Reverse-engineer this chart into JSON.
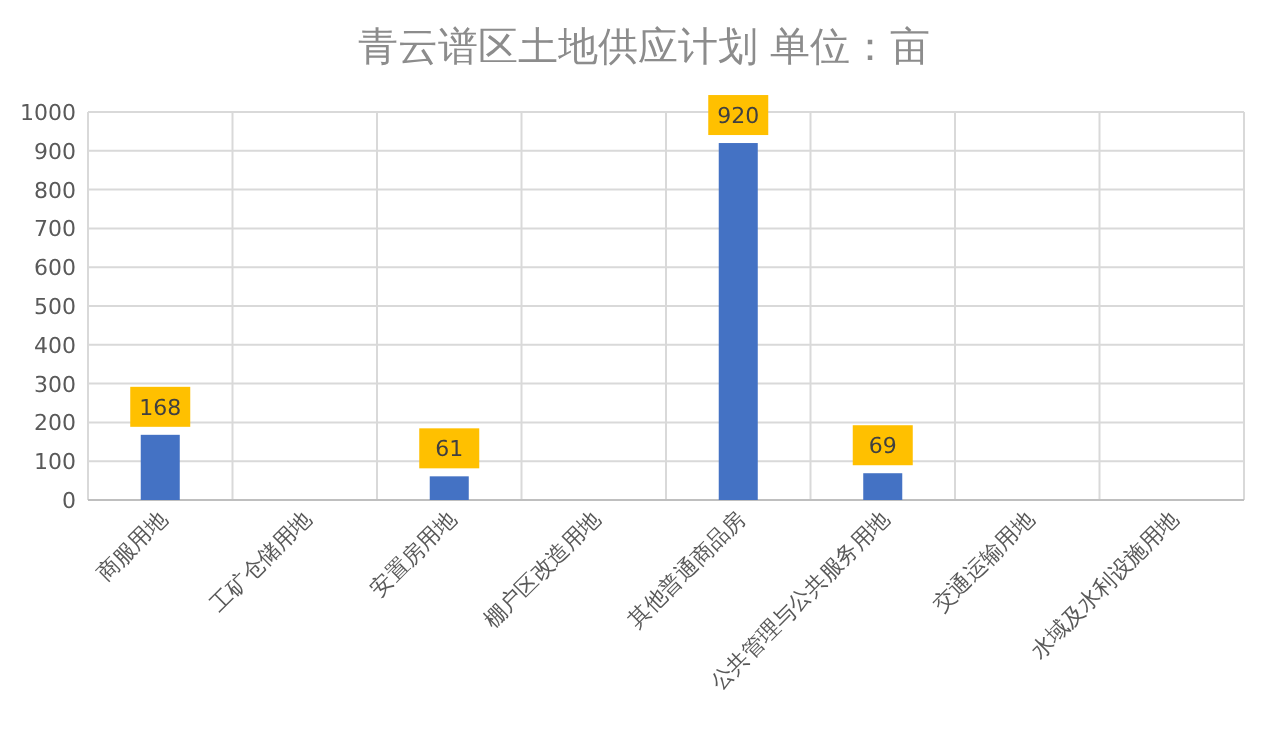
{
  "chart_data": {
    "type": "bar",
    "title": "青云谱区土地供应计划 单位：亩",
    "categories": [
      "商服用地",
      "工矿仓储用地",
      "安置房用地",
      "棚户区改造用地",
      "其他普通商品房",
      "公共管理与公共服务用地",
      "交通运输用地",
      "水域及水利设施用地"
    ],
    "values": [
      168,
      null,
      61,
      null,
      920,
      69,
      null,
      null
    ],
    "value_labels": [
      "168",
      null,
      "61",
      null,
      "920",
      "69",
      null,
      null
    ],
    "color": "#4472c4",
    "ylim": [
      0,
      1000
    ],
    "yticks": [
      0,
      100,
      200,
      300,
      400,
      500,
      600,
      700,
      800,
      900,
      1000
    ],
    "grid": true
  }
}
